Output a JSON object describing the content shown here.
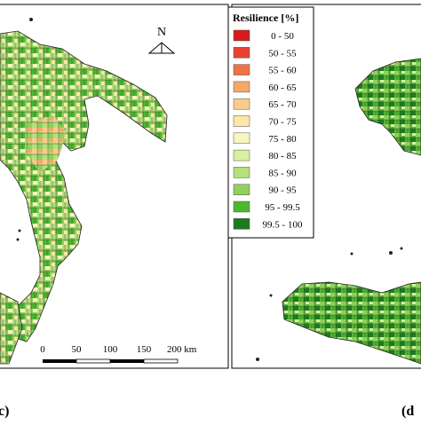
{
  "map": {
    "north_label": "N",
    "scale_labels": [
      "0",
      "50",
      "100",
      "150",
      "200 km"
    ],
    "legend": {
      "title": "Resilience [%]",
      "items": [
        {
          "label": "0 - 50",
          "color": "#d7191c"
        },
        {
          "label": "50 - 55",
          "color": "#e8432e"
        },
        {
          "label": "55 - 60",
          "color": "#f07245"
        },
        {
          "label": "60 - 65",
          "color": "#f5a865"
        },
        {
          "label": "65 - 70",
          "color": "#f9cb8c"
        },
        {
          "label": "70 - 75",
          "color": "#fce6a8"
        },
        {
          "label": "75 - 80",
          "color": "#f6f6c2"
        },
        {
          "label": "80 - 85",
          "color": "#daf0a0"
        },
        {
          "label": "85 - 90",
          "color": "#b6e07c"
        },
        {
          "label": "90 - 95",
          "color": "#90d05c"
        },
        {
          "label": "95 - 99.5",
          "color": "#4cb830"
        },
        {
          "label": "99.5 - 100",
          "color": "#1f7a1f"
        }
      ]
    },
    "panel_labels": [
      "c)",
      "(d"
    ]
  }
}
